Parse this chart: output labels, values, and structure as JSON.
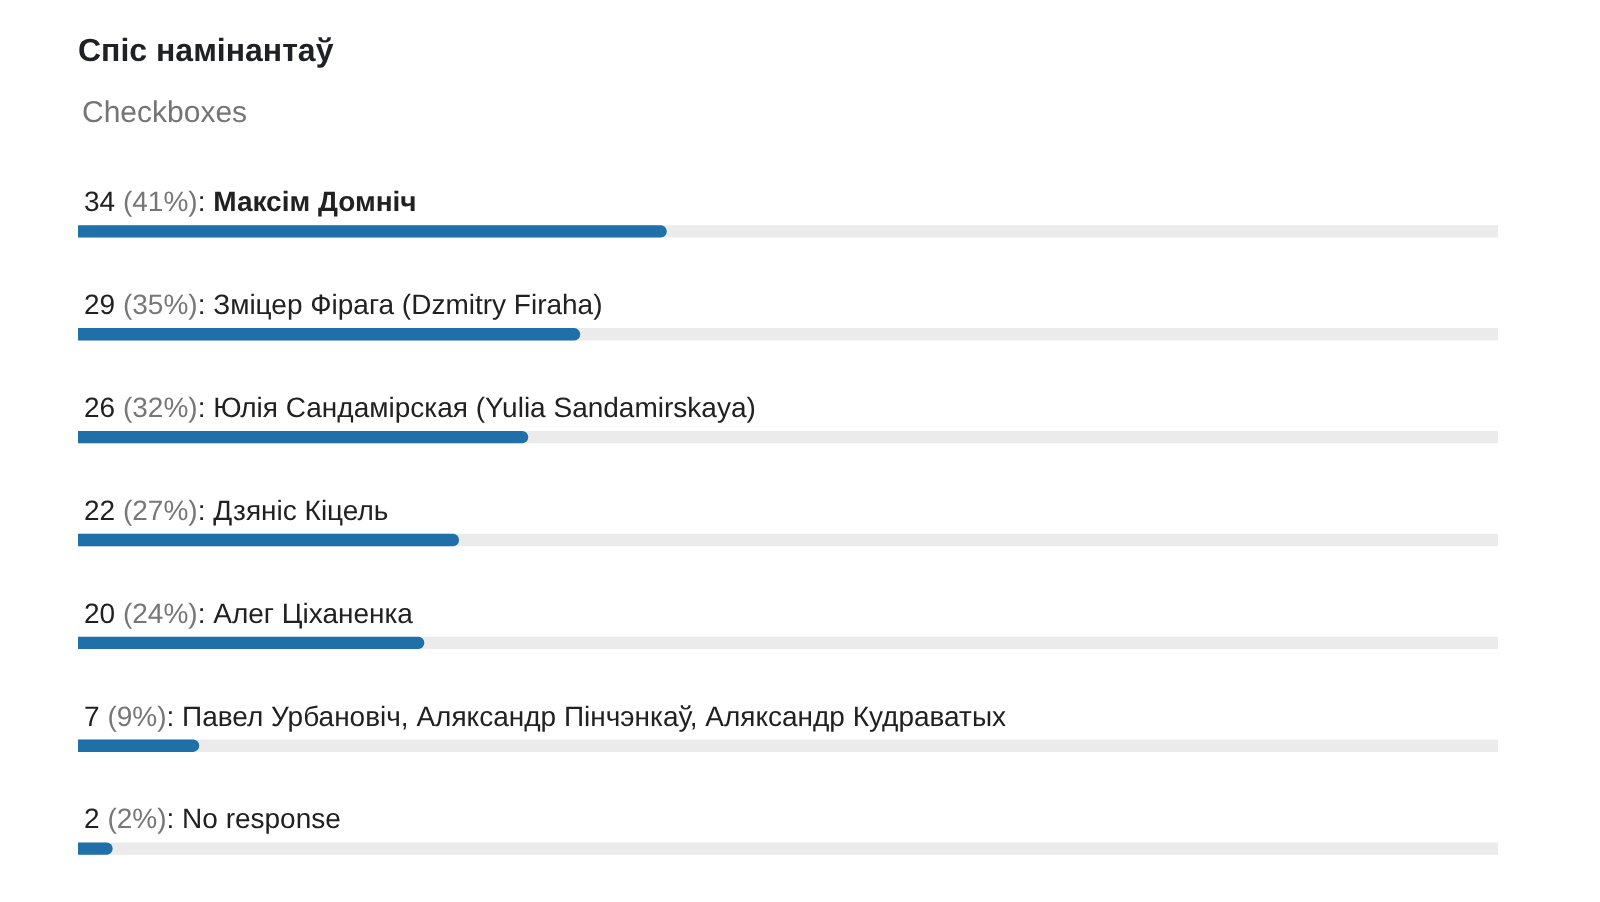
{
  "chart_data": {
    "type": "bar",
    "orientation": "horizontal",
    "title": "Спіс намінантаў",
    "subtitle": "Checkboxes",
    "categories": [
      "Максім Домніч",
      "Зміцер Фірага (Dzmitry Firaha)",
      "Юлія Сандамірская (Yulia Sandamirskaya)",
      "Дзяніс Кіцель",
      "Алег Ціханенка",
      "Павел Урбановіч, Аляксандр Пінчэнкаў, Аляксандр Кудраватых",
      "No response"
    ],
    "values": [
      34,
      29,
      26,
      22,
      20,
      7,
      2
    ],
    "value_labels": [
      "34 (41%):",
      "29 (35%):",
      "26 (32%):",
      "22 (27%):",
      "20 (24%):",
      "7 (9%):",
      "2 (2%):"
    ],
    "color": "#1f6fa8",
    "xlim": [
      0,
      82
    ],
    "tick_labels": "y"
  }
}
